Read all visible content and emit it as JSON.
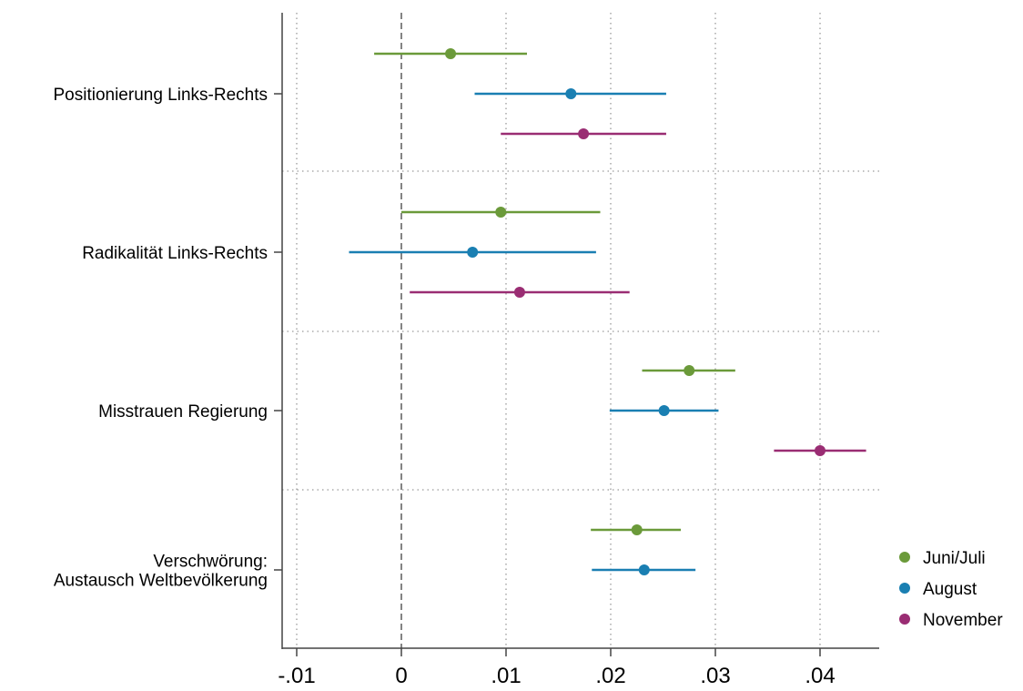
{
  "chart_data": {
    "type": "scatter",
    "subtype": "coefficient-plot-with-confidence-intervals",
    "title": "",
    "xlabel": "",
    "ylabel": "",
    "xlim": [
      -0.0115,
      0.0458
    ],
    "x_ticks": [
      -0.01,
      0,
      0.01,
      0.02,
      0.03,
      0.04
    ],
    "x_tick_labels": [
      "-.01",
      "0",
      ".01",
      ".02",
      ".03",
      ".04"
    ],
    "reference_line_x": 0,
    "grid": true,
    "legend_position": "right",
    "categories": [
      {
        "lines": [
          "Positionierung Links-Rechts"
        ]
      },
      {
        "lines": [
          "Radikalität Links-Rechts"
        ]
      },
      {
        "lines": [
          "Misstrauen Regierung"
        ]
      },
      {
        "lines": [
          "Verschwörung:",
          "Austausch Weltbevölkerung"
        ]
      }
    ],
    "series": [
      {
        "name": "Juni/Juli",
        "color": "#6b9a3a",
        "points": [
          {
            "estimate": 0.0047,
            "low": -0.0026,
            "high": 0.012
          },
          {
            "estimate": 0.0095,
            "low": 0.0,
            "high": 0.019
          },
          {
            "estimate": 0.0275,
            "low": 0.023,
            "high": 0.0319
          },
          {
            "estimate": 0.0225,
            "low": 0.0181,
            "high": 0.0267
          }
        ]
      },
      {
        "name": "August",
        "color": "#1a7fb2",
        "points": [
          {
            "estimate": 0.0162,
            "low": 0.007,
            "high": 0.0253
          },
          {
            "estimate": 0.0068,
            "low": -0.005,
            "high": 0.0186
          },
          {
            "estimate": 0.0251,
            "low": 0.0199,
            "high": 0.0303
          },
          {
            "estimate": 0.0232,
            "low": 0.0182,
            "high": 0.0281
          }
        ]
      },
      {
        "name": "November",
        "color": "#9a2d73",
        "points": [
          {
            "estimate": 0.0174,
            "low": 0.0095,
            "high": 0.0253
          },
          {
            "estimate": 0.0113,
            "low": 0.0008,
            "high": 0.0218
          },
          {
            "estimate": 0.04,
            "low": 0.0356,
            "high": 0.0444
          },
          null
        ]
      }
    ]
  }
}
